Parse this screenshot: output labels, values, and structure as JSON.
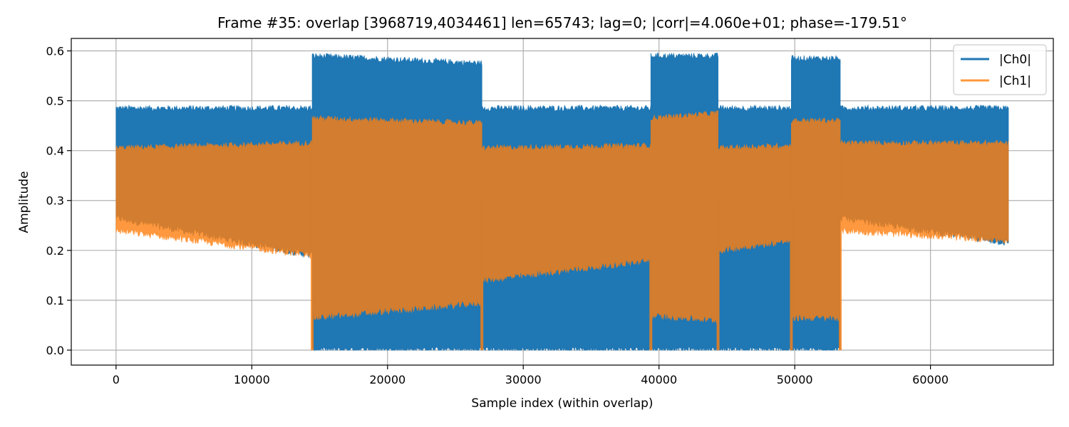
{
  "chart_data": {
    "type": "area",
    "title": "Frame #35: overlap [3968719,4034461]  len=65743; lag=0; |corr|=4.060e+01; phase=-179.51°",
    "xlabel": "Sample index (within overlap)",
    "ylabel": "Amplitude",
    "xlim": [
      -3300,
      69050
    ],
    "ylim": [
      -0.03,
      0.625
    ],
    "xticks": [
      0,
      10000,
      20000,
      30000,
      40000,
      50000,
      60000
    ],
    "xtick_labels": [
      "0",
      "10000",
      "20000",
      "30000",
      "40000",
      "50000",
      "60000"
    ],
    "yticks": [
      0.0,
      0.1,
      0.2,
      0.3,
      0.4,
      0.5,
      0.6
    ],
    "ytick_labels": [
      "0.0",
      "0.1",
      "0.2",
      "0.3",
      "0.4",
      "0.5",
      "0.6"
    ],
    "grid": true,
    "legend_position": "top-right",
    "series": [
      {
        "name": "|Ch0|",
        "color": "#1f77b4",
        "opacity": 1.0,
        "note": "envelope of amplitude (min/max band) per segment",
        "segments": [
          {
            "x": [
              0,
              14450
            ],
            "max": [
              0.485,
              0.485
            ],
            "min": [
              0.265,
              0.19
            ]
          },
          {
            "x": [
              14450,
              26950
            ],
            "max": [
              0.59,
              0.575
            ],
            "min": [
              0.0,
              0.0
            ]
          },
          {
            "x": [
              26950,
              39400
            ],
            "max": [
              0.485,
              0.485
            ],
            "min": [
              0.0,
              0.0
            ]
          },
          {
            "x": [
              39400,
              44350
            ],
            "max": [
              0.59,
              0.59
            ],
            "min": [
              0.0,
              0.0
            ]
          },
          {
            "x": [
              44350,
              49750
            ],
            "max": [
              0.485,
              0.485
            ],
            "min": [
              0.0,
              0.0
            ]
          },
          {
            "x": [
              49750,
              53350
            ],
            "max": [
              0.585,
              0.585
            ],
            "min": [
              0.0,
              0.0
            ]
          },
          {
            "x": [
              53350,
              65743
            ],
            "max": [
              0.485,
              0.485
            ],
            "min": [
              0.265,
              0.215
            ]
          }
        ]
      },
      {
        "name": "|Ch1|",
        "color": "#ff7f0e",
        "opacity": 0.8,
        "note": "envelope of amplitude (min/max band) per segment",
        "segments": [
          {
            "x": [
              0,
              14450
            ],
            "max": [
              0.405,
              0.415
            ],
            "min": [
              0.24,
              0.19
            ]
          },
          {
            "x": [
              14450,
              26950
            ],
            "max": [
              0.465,
              0.455
            ],
            "min": [
              0.065,
              0.095
            ]
          },
          {
            "x": [
              26950,
              39400
            ],
            "max": [
              0.405,
              0.41
            ],
            "min": [
              0.14,
              0.18
            ]
          },
          {
            "x": [
              39400,
              44350
            ],
            "max": [
              0.465,
              0.475
            ],
            "min": [
              0.07,
              0.06
            ]
          },
          {
            "x": [
              44350,
              49750
            ],
            "max": [
              0.405,
              0.41
            ],
            "min": [
              0.2,
              0.22
            ]
          },
          {
            "x": [
              49750,
              53350
            ],
            "max": [
              0.46,
              0.46
            ],
            "min": [
              0.065,
              0.065
            ]
          },
          {
            "x": [
              53350,
              65743
            ],
            "max": [
              0.415,
              0.415
            ],
            "min": [
              0.24,
              0.22
            ]
          }
        ],
        "dips_to_zero_at": [
          14450,
          26950,
          39400,
          44350,
          49750,
          53350
        ]
      }
    ]
  }
}
